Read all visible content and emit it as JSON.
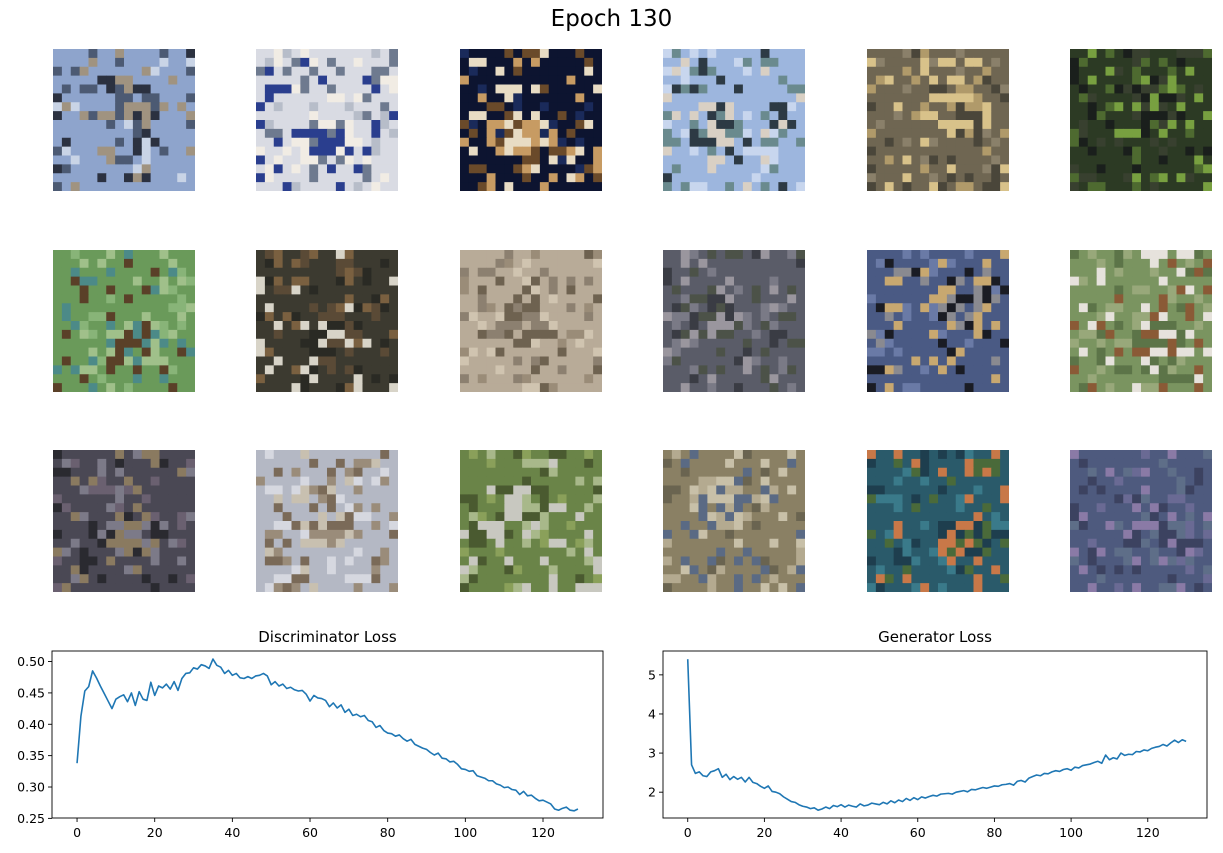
{
  "figure": {
    "suptitle": "Epoch 130"
  },
  "samples": {
    "rows": 3,
    "cols": 6,
    "tiles": [
      {
        "palette": [
          "#8ea4cc",
          "#c9d4e6",
          "#4c5a73",
          "#a09380",
          "#2b3140"
        ],
        "label": "generated-sample"
      },
      {
        "palette": [
          "#d9dbe3",
          "#b7bdc9",
          "#6e7a8f",
          "#f1ece4",
          "#2a3e8e"
        ],
        "label": "generated-sample"
      },
      {
        "palette": [
          "#0d1430",
          "#1a2a5a",
          "#c79b63",
          "#e8dcc4",
          "#6a4a2a"
        ],
        "label": "generated-sample"
      },
      {
        "palette": [
          "#9db6de",
          "#c8d6ee",
          "#2d3a44",
          "#6a8a8e",
          "#d9d0c4"
        ],
        "label": "generated-sample"
      },
      {
        "palette": [
          "#6f6652",
          "#8a806a",
          "#b09a6a",
          "#d8c28a",
          "#4a463a"
        ],
        "label": "generated-sample"
      },
      {
        "palette": [
          "#2c3a24",
          "#4e6a30",
          "#1a1f1c",
          "#78a040",
          "#38402f"
        ],
        "label": "generated-sample"
      },
      {
        "palette": [
          "#6a9a5a",
          "#88b478",
          "#5a4028",
          "#4c8a88",
          "#a0c08a"
        ],
        "label": "generated-sample"
      },
      {
        "palette": [
          "#3c3a30",
          "#7a6040",
          "#d8d4c8",
          "#5a4a36",
          "#2a2a24"
        ],
        "label": "generated-sample"
      },
      {
        "palette": [
          "#b8ab98",
          "#9a8c78",
          "#d0c4b0",
          "#6e6250",
          "#8c8070"
        ],
        "label": "generated-sample"
      },
      {
        "palette": [
          "#5a5c68",
          "#7a7a86",
          "#3a3c44",
          "#9a969e",
          "#4c5248"
        ],
        "label": "generated-sample"
      },
      {
        "palette": [
          "#4a5a84",
          "#6a7aa6",
          "#c8a870",
          "#1a1c24",
          "#8a8a90"
        ],
        "label": "generated-sample"
      },
      {
        "palette": [
          "#7a9460",
          "#98a87a",
          "#e6e2dc",
          "#8a5a36",
          "#5c7448"
        ],
        "label": "generated-sample"
      },
      {
        "palette": [
          "#4a4854",
          "#6a6070",
          "#8a7a60",
          "#2a2a30",
          "#7c7a88"
        ],
        "label": "generated-sample"
      },
      {
        "palette": [
          "#b4b8c4",
          "#d6d8e0",
          "#7a6a58",
          "#9a8c7a",
          "#c8c0b0"
        ],
        "label": "generated-sample"
      },
      {
        "palette": [
          "#6a8448",
          "#8aa05a",
          "#c8c8c0",
          "#4a5a30",
          "#a8b88a"
        ],
        "label": "generated-sample"
      },
      {
        "palette": [
          "#8a8064",
          "#6a6450",
          "#b4aa90",
          "#5a6a84",
          "#c8c0a8"
        ],
        "label": "generated-sample"
      },
      {
        "palette": [
          "#2a5a6a",
          "#3a7a8a",
          "#c87848",
          "#4a6a3a",
          "#1e3e4e"
        ],
        "label": "generated-sample"
      },
      {
        "palette": [
          "#4e5a7e",
          "#6a6a94",
          "#8a7aa6",
          "#3c4260",
          "#5e6e88"
        ],
        "label": "generated-sample"
      }
    ]
  },
  "colors": {
    "line": "#1f77b4",
    "axes": "#000000"
  },
  "chart_data": [
    {
      "type": "line",
      "title": "Discriminator Loss",
      "xlabel": "",
      "ylabel": "",
      "xlim": [
        -6.45,
        135.45
      ],
      "ylim": [
        0.2506,
        0.5168
      ],
      "xticks": [
        0,
        20,
        40,
        60,
        80,
        100,
        120
      ],
      "yticks": [
        0.25,
        0.3,
        0.35,
        0.4,
        0.45,
        0.5
      ],
      "ytick_labels": [
        "0.25",
        "0.30",
        "0.35",
        "0.40",
        "0.45",
        "0.50"
      ],
      "grid": false,
      "series": [
        {
          "values": [
            0.338,
            0.413,
            0.453,
            0.46,
            0.485,
            0.474,
            0.461,
            0.449,
            0.437,
            0.425,
            0.44,
            0.444,
            0.447,
            0.436,
            0.45,
            0.43,
            0.452,
            0.44,
            0.438,
            0.467,
            0.446,
            0.461,
            0.458,
            0.464,
            0.456,
            0.468,
            0.454,
            0.473,
            0.481,
            0.482,
            0.49,
            0.488,
            0.495,
            0.493,
            0.489,
            0.504,
            0.494,
            0.491,
            0.481,
            0.486,
            0.478,
            0.481,
            0.474,
            0.473,
            0.476,
            0.473,
            0.477,
            0.478,
            0.481,
            0.477,
            0.463,
            0.468,
            0.461,
            0.464,
            0.457,
            0.459,
            0.455,
            0.453,
            0.454,
            0.448,
            0.437,
            0.446,
            0.442,
            0.441,
            0.438,
            0.428,
            0.434,
            0.426,
            0.431,
            0.419,
            0.424,
            0.414,
            0.416,
            0.412,
            0.414,
            0.406,
            0.404,
            0.395,
            0.398,
            0.39,
            0.386,
            0.385,
            0.381,
            0.383,
            0.377,
            0.373,
            0.376,
            0.368,
            0.365,
            0.362,
            0.36,
            0.355,
            0.351,
            0.354,
            0.346,
            0.345,
            0.34,
            0.341,
            0.336,
            0.329,
            0.328,
            0.325,
            0.326,
            0.318,
            0.316,
            0.314,
            0.31,
            0.31,
            0.305,
            0.303,
            0.299,
            0.3,
            0.296,
            0.295,
            0.288,
            0.293,
            0.286,
            0.287,
            0.282,
            0.278,
            0.279,
            0.276,
            0.273,
            0.265,
            0.263,
            0.266,
            0.268,
            0.263,
            0.262,
            0.265
          ]
        }
      ]
    },
    {
      "type": "line",
      "title": "Generator Loss",
      "xlabel": "",
      "ylabel": "",
      "xlim": [
        -6.45,
        135.45
      ],
      "ylim": [
        1.34,
        5.61
      ],
      "xticks": [
        0,
        20,
        40,
        60,
        80,
        100,
        120
      ],
      "yticks": [
        2,
        3,
        4,
        5
      ],
      "ytick_labels": [
        "2",
        "3",
        "4",
        "5"
      ],
      "grid": false,
      "series": [
        {
          "values": [
            5.4,
            2.7,
            2.48,
            2.52,
            2.42,
            2.4,
            2.52,
            2.55,
            2.6,
            2.38,
            2.46,
            2.32,
            2.4,
            2.33,
            2.38,
            2.26,
            2.38,
            2.25,
            2.22,
            2.15,
            2.1,
            2.16,
            2.02,
            2.0,
            1.96,
            1.88,
            1.82,
            1.76,
            1.74,
            1.68,
            1.64,
            1.62,
            1.58,
            1.6,
            1.54,
            1.57,
            1.62,
            1.58,
            1.66,
            1.63,
            1.68,
            1.62,
            1.67,
            1.64,
            1.62,
            1.7,
            1.65,
            1.67,
            1.72,
            1.7,
            1.68,
            1.74,
            1.7,
            1.78,
            1.73,
            1.8,
            1.76,
            1.84,
            1.79,
            1.86,
            1.81,
            1.88,
            1.85,
            1.89,
            1.92,
            1.9,
            1.95,
            1.96,
            1.97,
            1.95,
            2.0,
            2.02,
            2.04,
            2.01,
            2.07,
            2.06,
            2.09,
            2.12,
            2.1,
            2.13,
            2.16,
            2.15,
            2.19,
            2.2,
            2.22,
            2.18,
            2.28,
            2.3,
            2.26,
            2.36,
            2.4,
            2.44,
            2.42,
            2.48,
            2.47,
            2.52,
            2.55,
            2.53,
            2.58,
            2.6,
            2.56,
            2.64,
            2.62,
            2.68,
            2.7,
            2.72,
            2.76,
            2.79,
            2.74,
            2.95,
            2.83,
            2.88,
            2.85,
            3.0,
            2.94,
            2.97,
            2.96,
            3.04,
            3.03,
            3.08,
            3.06,
            3.12,
            3.15,
            3.17,
            3.22,
            3.18,
            3.26,
            3.33,
            3.27,
            3.34,
            3.3
          ]
        }
      ]
    }
  ]
}
